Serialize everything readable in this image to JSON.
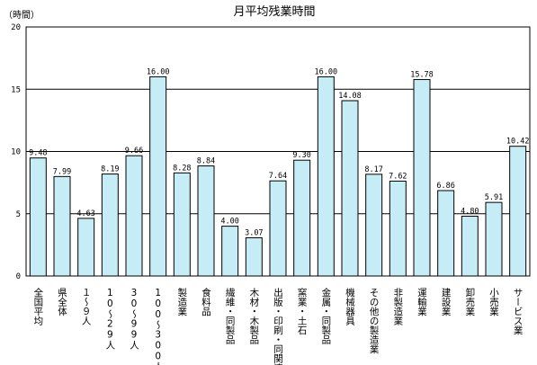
{
  "chart_data": {
    "type": "bar",
    "title": "月平均残業時間",
    "ylabel": "（時間）",
    "ylim": [
      0,
      20
    ],
    "yticks": [
      0,
      5,
      10,
      15,
      20
    ],
    "grid": true,
    "bar_color": "#c6ecf5",
    "categories": [
      "全国平均",
      "県全体",
      "１～９人",
      "10～29人",
      "30～99人",
      "100～300人",
      "製造業",
      "食料品",
      "繊維・同製品",
      "木材・木製品",
      "出版・印刷・同関連",
      "窯業・土石",
      "金属・同製品",
      "機械器具",
      "その他の製造業",
      "非製造業",
      "運輸業",
      "建設業",
      "卸売業",
      "小売業",
      "サービス業"
    ],
    "values": [
      9.48,
      7.99,
      4.63,
      8.19,
      9.66,
      16.0,
      8.28,
      8.84,
      4.0,
      3.07,
      7.64,
      9.3,
      16.0,
      14.08,
      8.17,
      7.62,
      15.78,
      6.86,
      4.8,
      5.91,
      10.42
    ],
    "value_labels": [
      "9.48",
      "7.99",
      "4.63",
      "8.19",
      "9.66",
      "16.00",
      "8.28",
      "8.84",
      "4.00",
      "3.07",
      "7.64",
      "9.30",
      "16.00",
      "14.08",
      "8.17",
      "7.62",
      "15.78",
      "6.86",
      "4.80",
      "5.91",
      "10.42"
    ]
  }
}
